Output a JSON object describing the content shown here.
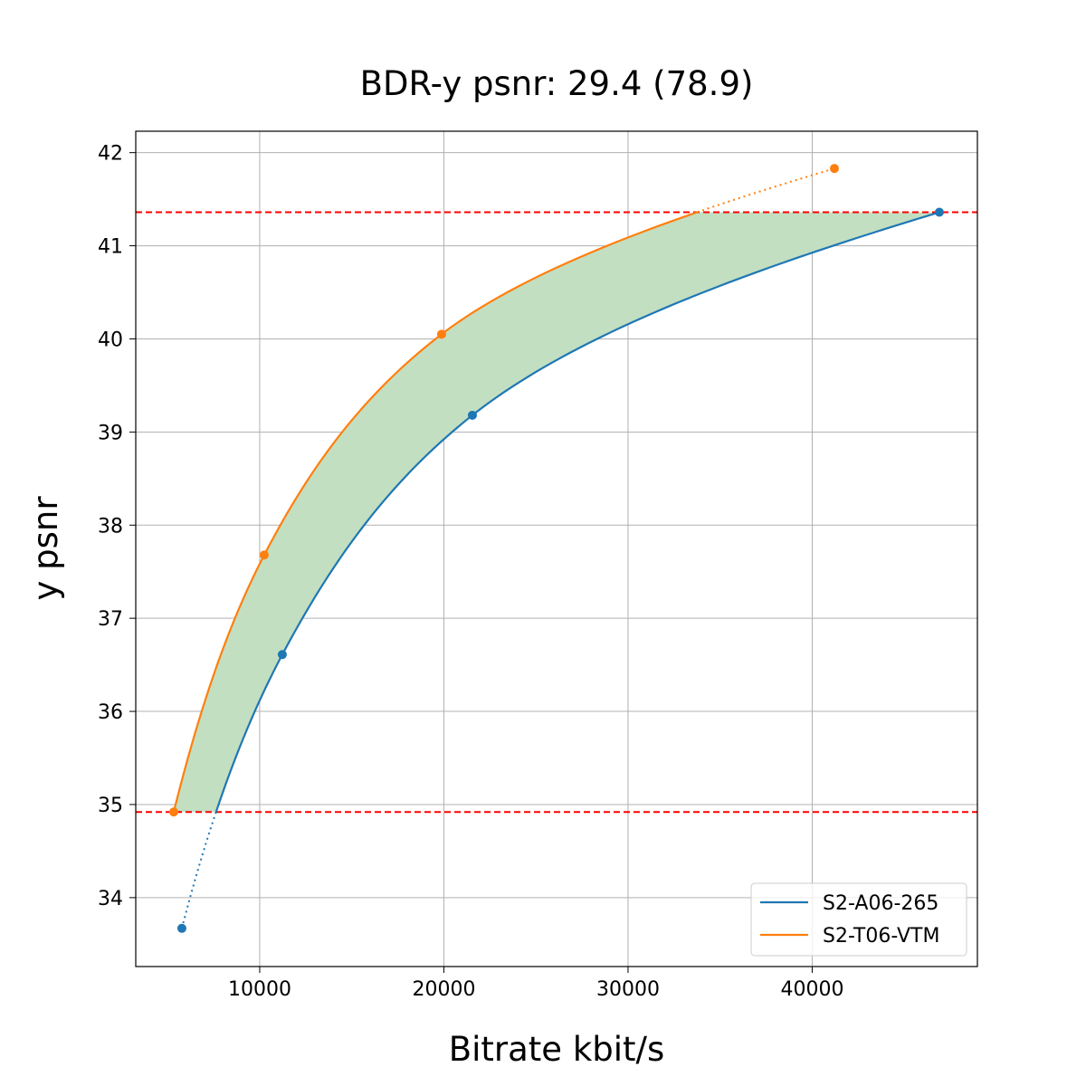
{
  "chart_data": {
    "type": "line",
    "title": "BDR-y psnr: 29.4 (78.9)",
    "xlabel": "Bitrate kbit/s",
    "ylabel": "y psnr",
    "xlim": [
      3270,
      48970
    ],
    "ylim": [
      33.26,
      42.23
    ],
    "xticks": [
      10000,
      20000,
      30000,
      40000
    ],
    "yticks": [
      34,
      35,
      36,
      37,
      38,
      39,
      40,
      41,
      42
    ],
    "grid": true,
    "legend_placement": "lower-right",
    "hlines": [
      41.36,
      34.92
    ],
    "hline_color": "#ff0000",
    "fill_color": "#c2dfc2",
    "series": [
      {
        "name": "S2-A06-265",
        "color": "#1f77b4",
        "x": [
          5774,
          11228,
          21548,
          46904
        ],
        "y": [
          33.67,
          36.61,
          39.18,
          41.36
        ]
      },
      {
        "name": "S2-T06-VTM",
        "color": "#ff7f0e",
        "x": [
          5332,
          10246,
          19877,
          41204
        ],
        "y": [
          34.92,
          37.68,
          40.05,
          41.83
        ]
      }
    ]
  }
}
